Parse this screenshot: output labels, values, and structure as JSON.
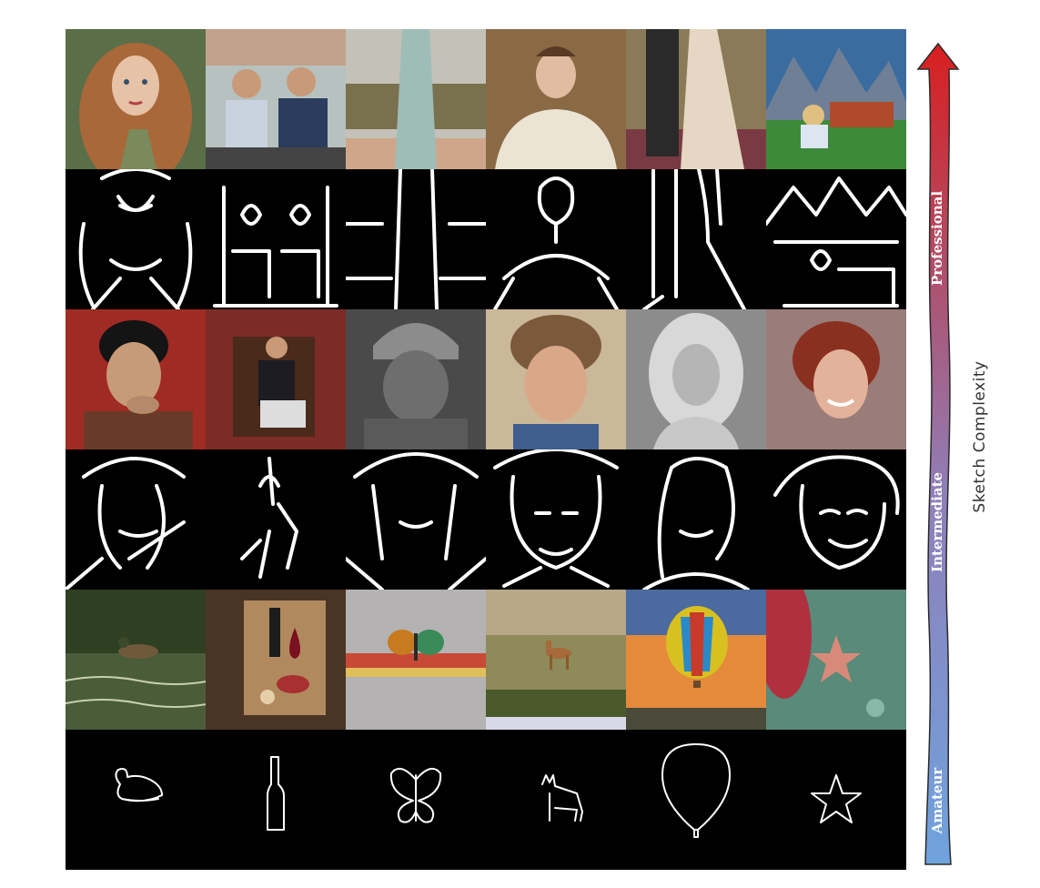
{
  "axis_label": "Sketch Complexity",
  "levels": {
    "professional": "Professional",
    "intermediate": "Intermediate",
    "amateur": "Amateur"
  },
  "colors": {
    "arrow_top": "#d81f1f",
    "arrow_mid": "#8f7fb8",
    "arrow_bottom": "#6fa3de"
  },
  "rows": [
    {
      "level": "professional",
      "kind": "photo",
      "subjects": [
        "girl-with-auburn-curls",
        "two-men-on-couch",
        "woman-in-pale-gown",
        "painted-lady-in-white-dress",
        "couple-on-red-carpet",
        "painting-woman-facing-mountains"
      ]
    },
    {
      "level": "professional",
      "kind": "sketch",
      "subjects": [
        "girl-sketch",
        "two-men-sketch",
        "gown-sketch",
        "lady-sketch",
        "couple-sketch",
        "mountain-scene-sketch"
      ]
    },
    {
      "level": "intermediate",
      "kind": "photo",
      "subjects": [
        "man-dark-hair-red-bg",
        "seated-bearded-man",
        "old-man-knit-cap",
        "curly-haired-man",
        "blonde-woman-grayscale",
        "red-haired-woman-smiling"
      ]
    },
    {
      "level": "intermediate",
      "kind": "sketch",
      "subjects": [
        "man-hand-sketch",
        "seated-man-sketch",
        "old-man-sketch",
        "curly-man-sketch",
        "blonde-woman-sketch",
        "red-haired-woman-sketch"
      ]
    },
    {
      "level": "amateur",
      "kind": "photo",
      "subjects": [
        "duck-on-water",
        "wine-bottle-and-glass",
        "butterfly",
        "deer-in-grassland",
        "hot-air-balloon",
        "starfish-on-reef"
      ]
    },
    {
      "level": "amateur",
      "kind": "sketch",
      "subjects": [
        "duck-sketch",
        "bottle-sketch",
        "butterfly-sketch",
        "deer-sketch",
        "balloon-sketch",
        "starfish-sketch"
      ]
    }
  ]
}
